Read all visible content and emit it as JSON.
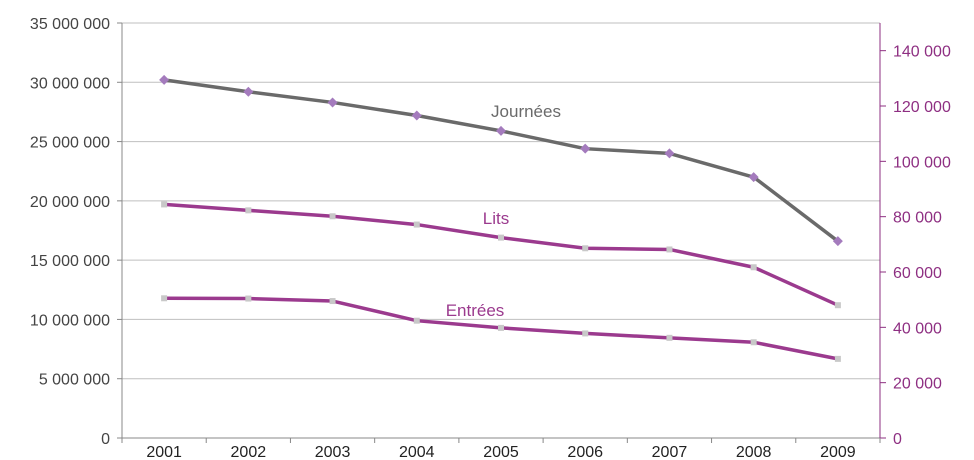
{
  "colors": {
    "journees_line": "#6a6a6a",
    "journees_marker": "#a47bbd",
    "lits_line": "#9b3a8e",
    "lits_marker": "#c8c8c8",
    "entrees_line": "#9b3a8e",
    "entrees_marker": "#c8c8c8",
    "right_axis": "#8e2f82",
    "grid": "#bfbfbf",
    "axis": "#888888"
  },
  "chart_data": {
    "type": "line",
    "categories": [
      "2001",
      "2002",
      "2003",
      "2004",
      "2005",
      "2006",
      "2007",
      "2008",
      "2009"
    ],
    "y_left": {
      "ylim": [
        0,
        35000000
      ],
      "ticks": [
        0,
        5000000,
        10000000,
        15000000,
        20000000,
        25000000,
        30000000,
        35000000
      ],
      "tick_labels": [
        "0",
        "5 000 000",
        "10 000 000",
        "15 000 000",
        "20 000 000",
        "25 000 000",
        "30 000 000",
        "35 000 000"
      ]
    },
    "y_right": {
      "ylim": [
        0,
        150000
      ],
      "ticks": [
        0,
        20000,
        40000,
        60000,
        80000,
        100000,
        120000,
        140000
      ],
      "tick_labels": [
        "0",
        "20 000",
        "40 000",
        "60 000",
        "80 000",
        "100 000",
        "120 000",
        "140 000"
      ]
    },
    "grid": true,
    "series": [
      {
        "name": "Journées",
        "axis": "left",
        "values": [
          30200000,
          29200000,
          28300000,
          27200000,
          25900000,
          24400000,
          24000000,
          22000000,
          16600000
        ]
      },
      {
        "name": "Lits",
        "axis": "left",
        "values": [
          19700000,
          19200000,
          18700000,
          18000000,
          16900000,
          16000000,
          15900000,
          14400000,
          11200000
        ]
      },
      {
        "name": "Entrées",
        "axis": "right",
        "values": [
          50500,
          50400,
          49500,
          42400,
          39800,
          37800,
          36200,
          34600,
          28600
        ]
      }
    ]
  }
}
